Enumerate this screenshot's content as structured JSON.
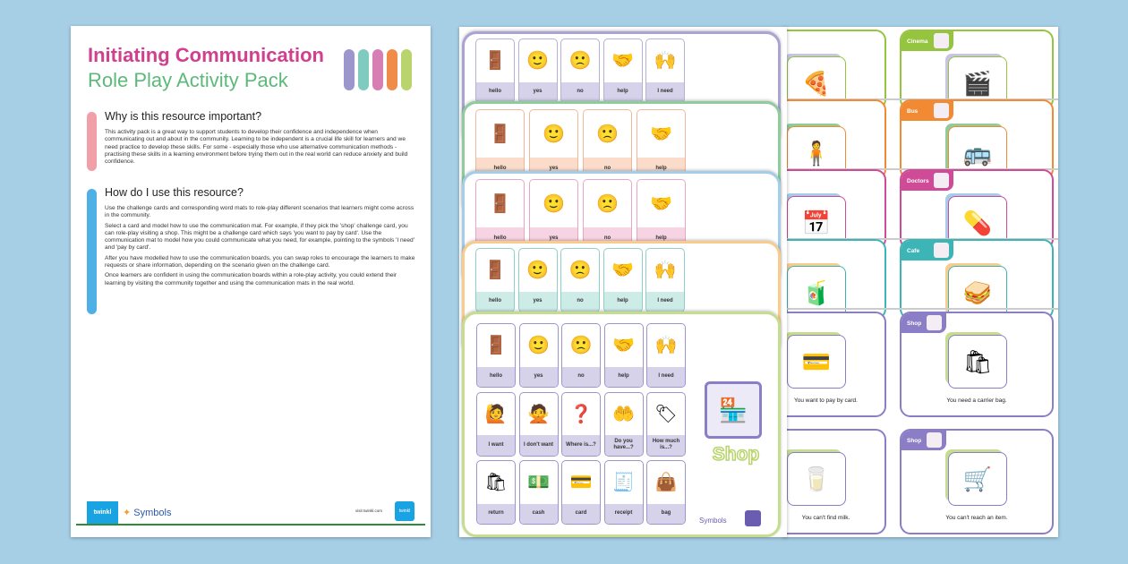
{
  "guide": {
    "title_line1": "Initiating Communication",
    "title_line2": "Role Play Activity Pack",
    "pill_colors": [
      "#9b97cc",
      "#7fcbbf",
      "#d77fb5",
      "#f08c4a",
      "#b9d46c"
    ],
    "section1": {
      "heading": "Why is this resource important?",
      "color": "#f2a0a8",
      "paragraphs": [
        "This activity pack is a great way to support students to develop their confidence and independence when communicating out and about in the community. Learning to be independent is a crucial life skill for learners and we need practice to develop these skills. For some - especially those who use alternative communication methods - practising these skills in a learning environment before trying them out in the real world can reduce anxiety and build confidence."
      ]
    },
    "section2": {
      "heading": "How do I use this resource?",
      "color": "#4fb0e6",
      "paragraphs": [
        "Use the challenge cards and corresponding word mats to role-play different scenarios that learners might come across in the community.",
        "Select a card and model how to use the communication mat. For example, if they pick the 'shop' challenge card, you can role-play visiting a shop. This might be a challenge card which says 'you want to pay by card'. Use the communication mat to model how you could communicate what you need, for example, pointing to the symbols 'I need' and 'pay by card'.",
        "After you have modelled how to use the communication boards, you can swap roles to encourage the learners to make requests or share information, depending on the scenario given on the challenge card.",
        "Once learners are confident in using the communication boards within a role-play activity, you could extend their learning by visiting the community together and using the communication mats in the real world."
      ]
    },
    "footer": {
      "twinkl": "twinkl",
      "symbols": "Symbols",
      "visit": "visit twinkl.com",
      "badge": "twinkl"
    }
  },
  "mats": [
    {
      "color": "#aaa3d4",
      "cellborder": "#b5b0d8",
      "labelbg": "#d5d2ea",
      "labels": [
        "hello",
        "yes",
        "no",
        "help",
        "I need"
      ]
    },
    {
      "color": "#8fcc9c",
      "cellborder": "#f0b89a",
      "labelbg": "#fbdccb",
      "labels": [
        "hello",
        "yes",
        "no",
        "help"
      ]
    },
    {
      "color": "#a3cde9",
      "cellborder": "#e8a6c4",
      "labelbg": "#f7d4e4",
      "labels": [
        "hello",
        "yes",
        "no",
        "help"
      ]
    },
    {
      "color": "#f9cb8d",
      "cellborder": "#8fcfc9",
      "labelbg": "#cdebe7",
      "labels": [
        "hello",
        "yes",
        "no",
        "help",
        "I need"
      ]
    },
    {
      "color": "#c6dd90",
      "cellborder": "#9d95cc",
      "labelbg": "#d5d2ea",
      "labels": [
        "hello",
        "yes",
        "no",
        "help",
        "I need",
        "I want",
        "I don't want",
        "Where is...?",
        "Do you have...?",
        "How much is...?",
        "return",
        "cash",
        "card",
        "receipt",
        "bag"
      ],
      "place": "Shop",
      "symbols": "Symbols"
    }
  ],
  "cards": [
    {
      "label": "Cinema",
      "color": "#95c43e",
      "corner": "#c9c3e6",
      "icons": [
        "🍕",
        "🎬"
      ]
    },
    {
      "label": "Bus",
      "color": "#f28a34",
      "corner": "#8fcc9c",
      "icons": [
        "🧍",
        "🚌"
      ]
    },
    {
      "label": "Doctors",
      "color": "#cf4a97",
      "corner": "#a3cde9",
      "icons": [
        "📅",
        "💊"
      ]
    },
    {
      "label": "Cafe",
      "color": "#3db5b6",
      "corner": "#f9cb8d",
      "icons": [
        "🧃",
        "🥪"
      ]
    }
  ],
  "shop_cards": {
    "label": "Shop",
    "color": "#8b7ec6",
    "corner": "#c6dd90",
    "items": [
      {
        "text": "You want to pay by card.",
        "icon": "💳"
      },
      {
        "text": "You need a carrier bag.",
        "icon": "🛍"
      },
      {
        "text": "You can't find milk.",
        "icon": "🥛"
      },
      {
        "text": "You can't reach an item.",
        "icon": "🛒"
      }
    ]
  }
}
